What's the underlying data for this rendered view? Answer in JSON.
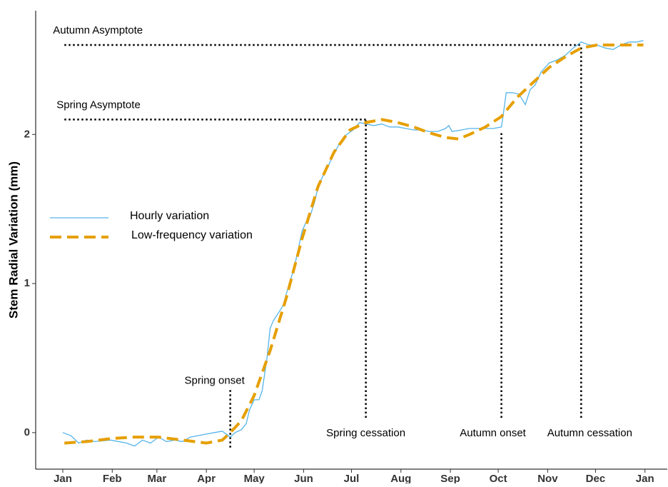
{
  "chart_data": {
    "type": "line",
    "ylabel": "Stem Radial Variation (mm)",
    "xlim": [
      -17,
      379
    ],
    "ylim": [
      -0.245,
      2.83
    ],
    "xticks": [
      {
        "value": 0,
        "label": "Jan"
      },
      {
        "value": 31,
        "label": "Feb"
      },
      {
        "value": 59,
        "label": "Mar"
      },
      {
        "value": 90,
        "label": "Apr"
      },
      {
        "value": 120,
        "label": "May"
      },
      {
        "value": 151,
        "label": "Jun"
      },
      {
        "value": 181,
        "label": "Jul"
      },
      {
        "value": 212,
        "label": "Aug"
      },
      {
        "value": 243,
        "label": "Sep"
      },
      {
        "value": 273,
        "label": "Oct"
      },
      {
        "value": 304,
        "label": "Nov"
      },
      {
        "value": 334,
        "label": "Dec"
      },
      {
        "value": 365,
        "label": "Jan"
      }
    ],
    "yticks": [
      0,
      1,
      2
    ],
    "series": [
      {
        "name": "Hourly variation",
        "color": "#56B4E9",
        "dashed": false,
        "x": [
          0,
          5,
          10,
          15,
          20,
          30,
          40,
          45,
          50,
          55,
          60,
          65,
          70,
          75,
          80,
          85,
          90,
          95,
          100,
          105,
          108,
          112,
          115,
          117,
          120,
          123,
          125,
          128,
          130,
          132,
          135,
          138,
          142,
          145,
          148,
          150,
          152,
          155,
          158,
          160,
          163,
          166,
          170,
          174,
          178,
          182,
          186,
          190,
          195,
          200,
          205,
          210,
          215,
          220,
          225,
          230,
          235,
          240,
          242,
          244,
          250,
          255,
          260,
          265,
          270,
          275,
          276,
          278,
          282,
          286,
          290,
          293,
          296,
          300,
          305,
          310,
          315,
          320,
          325,
          330,
          335,
          340,
          345,
          350,
          355,
          360,
          364
        ],
        "values": [
          0,
          -0.02,
          -0.07,
          -0.05,
          -0.06,
          -0.05,
          -0.07,
          -0.09,
          -0.05,
          -0.07,
          -0.03,
          -0.06,
          -0.05,
          -0.06,
          -0.03,
          -0.02,
          -0.01,
          0,
          0.01,
          -0.03,
          0,
          0.02,
          0.06,
          0.15,
          0.22,
          0.22,
          0.28,
          0.5,
          0.7,
          0.75,
          0.8,
          0.85,
          1.0,
          1.1,
          1.25,
          1.35,
          1.4,
          1.45,
          1.55,
          1.65,
          1.72,
          1.78,
          1.87,
          1.95,
          2.0,
          2.03,
          2.08,
          2.07,
          2.06,
          2.07,
          2.05,
          2.05,
          2.04,
          2.03,
          2.03,
          2.02,
          2.02,
          2.04,
          2.06,
          2.02,
          2.03,
          2.04,
          2.04,
          2.04,
          2.04,
          2.05,
          2.12,
          2.28,
          2.28,
          2.27,
          2.2,
          2.3,
          2.33,
          2.42,
          2.48,
          2.5,
          2.53,
          2.58,
          2.62,
          2.6,
          2.6,
          2.58,
          2.57,
          2.6,
          2.62,
          2.62,
          2.63
        ]
      },
      {
        "name": "Low-frequency variation",
        "color": "#E69F00",
        "dashed": true,
        "x": [
          1,
          15,
          30,
          45,
          60,
          75,
          90,
          100,
          105,
          112,
          120,
          130,
          140,
          150,
          160,
          170,
          180,
          190,
          200,
          210,
          220,
          230,
          240,
          248,
          255,
          265,
          275,
          285,
          295,
          305,
          315,
          325,
          335,
          350,
          364
        ],
        "values": [
          -0.07,
          -0.06,
          -0.04,
          -0.03,
          -0.03,
          -0.05,
          -0.07,
          -0.05,
          0,
          0.08,
          0.25,
          0.55,
          0.9,
          1.3,
          1.65,
          1.88,
          2.03,
          2.08,
          2.1,
          2.08,
          2.05,
          2.01,
          1.98,
          1.97,
          2.0,
          2.05,
          2.12,
          2.25,
          2.35,
          2.45,
          2.52,
          2.58,
          2.6,
          2.6,
          2.6
        ]
      }
    ],
    "hlines": [
      {
        "label": "Autumn Asymptote",
        "y": 2.6,
        "x": [
          1,
          325
        ]
      },
      {
        "label": "Spring Asymptote",
        "y": 2.1,
        "x": [
          1,
          190
        ]
      }
    ],
    "vlines": [
      {
        "label": "Spring onset",
        "x": 105,
        "y": [
          -0.1,
          0.29
        ]
      },
      {
        "label": "Spring cessation",
        "x": 190,
        "y": [
          0.1,
          2.1
        ]
      },
      {
        "label": "Autumn onset",
        "x": 275,
        "y": [
          0.1,
          2.02
        ]
      },
      {
        "label": "Autumn cessation",
        "x": 325,
        "y": [
          0.1,
          2.6
        ]
      }
    ]
  }
}
